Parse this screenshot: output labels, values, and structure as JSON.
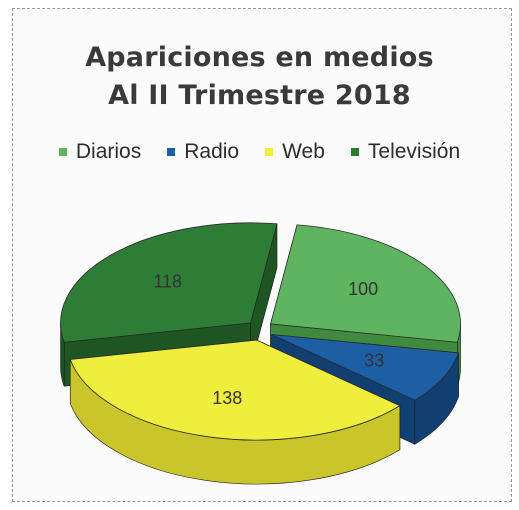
{
  "chart_data": {
    "type": "pie",
    "title": "Apariciones en medios",
    "subtitle": "Al II Trimestre 2018",
    "legend_position": "top",
    "categories": [
      "Diarios",
      "Radio",
      "Web",
      "Televisión"
    ],
    "values": [
      100,
      33,
      138,
      118
    ],
    "colors": [
      "#5fb55f",
      "#1c5fa5",
      "#f0ee3c",
      "#2e7d36"
    ],
    "side_colors": [
      "#3f8a3f",
      "#123f72",
      "#c9c52a",
      "#1d5623"
    ],
    "data_labels": [
      "100",
      "33",
      "138",
      "118"
    ],
    "style": "3d-exploded"
  }
}
